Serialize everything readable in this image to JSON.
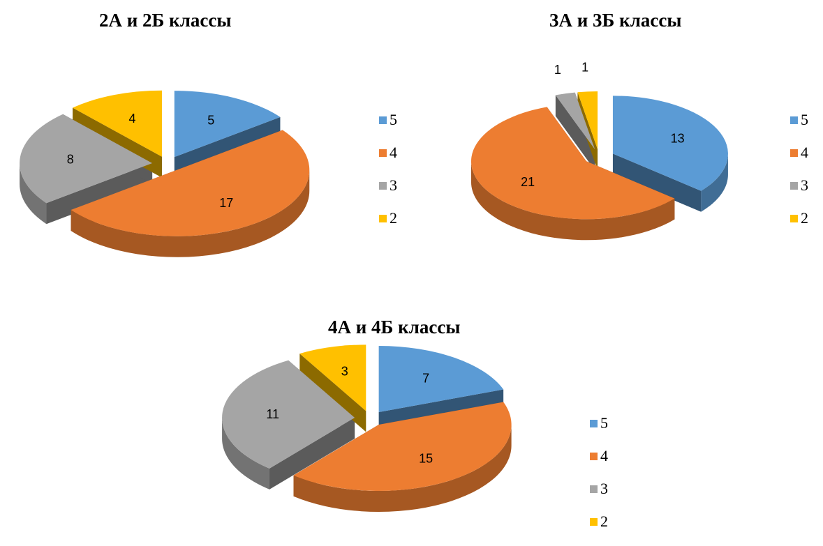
{
  "chart_data": [
    {
      "type": "pie",
      "title": "2А и 2Б классы",
      "categories": [
        "5",
        "4",
        "3",
        "2"
      ],
      "values": [
        5,
        17,
        8,
        4
      ],
      "legend_position": "right",
      "colors": [
        "#5B9BD5",
        "#ED7D31",
        "#A5A5A5",
        "#FFC000"
      ]
    },
    {
      "type": "pie",
      "title": "3А и 3Б классы",
      "categories": [
        "5",
        "4",
        "3",
        "2"
      ],
      "values": [
        13,
        21,
        1,
        1
      ],
      "legend_position": "right",
      "colors": [
        "#5B9BD5",
        "#ED7D31",
        "#A5A5A5",
        "#FFC000"
      ]
    },
    {
      "type": "pie",
      "title": "4А и 4Б классы",
      "categories": [
        "5",
        "4",
        "3",
        "2"
      ],
      "values": [
        7,
        15,
        11,
        3
      ],
      "legend_position": "right",
      "colors": [
        "#5B9BD5",
        "#ED7D31",
        "#A5A5A5",
        "#FFC000"
      ]
    }
  ]
}
